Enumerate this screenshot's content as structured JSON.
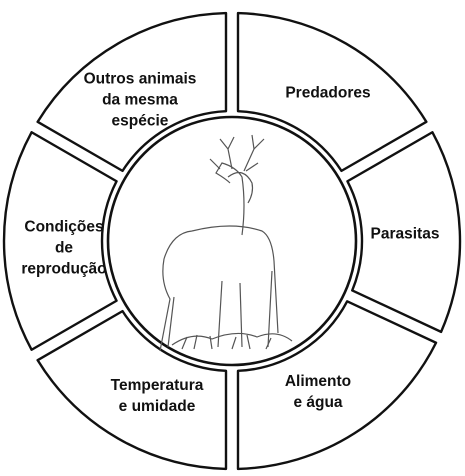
{
  "segments": [
    {
      "id": "predadores",
      "lines": [
        "Predadores"
      ]
    },
    {
      "id": "parasitas",
      "lines": [
        "Parasitas"
      ]
    },
    {
      "id": "alimento",
      "lines": [
        "Alimento",
        "e água"
      ]
    },
    {
      "id": "temperatura",
      "lines": [
        "Temperatura",
        "e umidade"
      ]
    },
    {
      "id": "reproducao",
      "lines": [
        "Condições",
        "de",
        "reprodução"
      ]
    },
    {
      "id": "outros",
      "lines": [
        "Outros animais",
        "da mesma",
        "espécie"
      ]
    }
  ],
  "center_image": "deer-illustration",
  "colors": {
    "outline": "#111111",
    "background": "#ffffff",
    "sketch": "#555555"
  }
}
